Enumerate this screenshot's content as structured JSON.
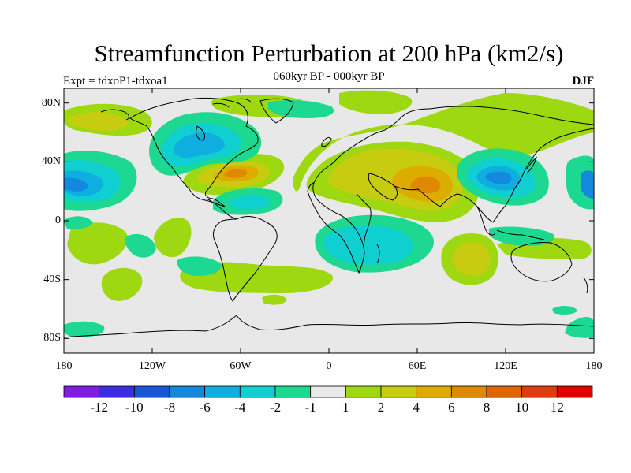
{
  "title": "Streamfunction Perturbation at 200 hPa (km2/s)",
  "subtitle": "060kyr BP - 000kyr BP",
  "experiment_label": "Expt = tdxoP1-tdxoa1",
  "season_label": "DJF",
  "map": {
    "projection": "cylindrical equidistant",
    "lon_range": [
      -180,
      180
    ],
    "lat_range": [
      -90,
      90
    ],
    "y_ticks": [
      {
        "lat": 80,
        "label": "80N"
      },
      {
        "lat": 40,
        "label": "40N"
      },
      {
        "lat": 0,
        "label": "0"
      },
      {
        "lat": -40,
        "label": "40S"
      },
      {
        "lat": -80,
        "label": "80S"
      }
    ],
    "x_ticks": [
      {
        "lon": -180,
        "label": "180"
      },
      {
        "lon": -120,
        "label": "120W"
      },
      {
        "lon": -60,
        "label": "60W"
      },
      {
        "lon": 0,
        "label": "0"
      },
      {
        "lon": 60,
        "label": "60E"
      },
      {
        "lon": 120,
        "label": "120E"
      },
      {
        "lon": 180,
        "label": "180"
      }
    ]
  },
  "colorbar": {
    "colors": [
      "#7f1ee0",
      "#3a2ee0",
      "#1a55d8",
      "#1488dc",
      "#0eaee0",
      "#10cfd0",
      "#1cd890",
      "#e8e8e8",
      "#9ed810",
      "#c8cc10",
      "#dcad00",
      "#e08800",
      "#e06400",
      "#e03c12",
      "#e00000"
    ],
    "labels": [
      "-12",
      "-10",
      "-8",
      "-6",
      "-4",
      "-2",
      "-1",
      "1",
      "2",
      "4",
      "6",
      "8",
      "10",
      "12"
    ]
  },
  "field_features": [
    {
      "lon": 65,
      "lat": 25,
      "rx": 26,
      "ry": 16,
      "level": 6,
      "sign": "positive"
    },
    {
      "lon": -68,
      "lat": 35,
      "rx": 14,
      "ry": 8,
      "level": 6,
      "sign": "positive"
    },
    {
      "lon": -168,
      "lat": 25,
      "rx": 16,
      "ry": 10,
      "level": -6,
      "sign": "negative"
    },
    {
      "lon": 118,
      "lat": 30,
      "rx": 14,
      "ry": 9,
      "level": -6,
      "sign": "negative"
    },
    {
      "lon": 178,
      "lat": 25,
      "rx": 5,
      "ry": 8,
      "level": -6,
      "sign": "negative"
    },
    {
      "lon": -90,
      "lat": 52,
      "rx": 24,
      "ry": 16,
      "level": -4,
      "sign": "negative"
    },
    {
      "lon": 20,
      "lat": -22,
      "rx": 30,
      "ry": 12,
      "level": -2,
      "sign": "negative"
    },
    {
      "lon": -48,
      "lat": 15,
      "rx": 16,
      "ry": 6,
      "level": -4,
      "sign": "negative"
    },
    {
      "lon": 105,
      "lat": -33,
      "rx": 10,
      "ry": 11,
      "level": 4,
      "sign": "positive"
    },
    {
      "lon": -120,
      "lat": -13,
      "rx": 8,
      "ry": 10,
      "level": 2,
      "sign": "positive"
    }
  ]
}
